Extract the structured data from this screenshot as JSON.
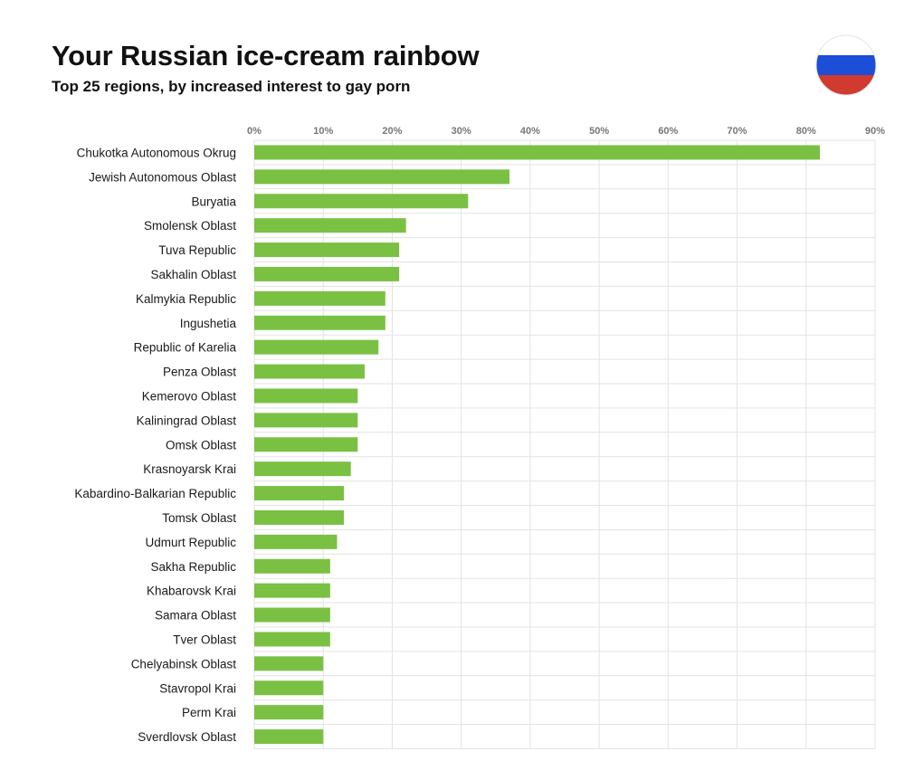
{
  "colors": {
    "bar": "#7ac143",
    "grid": "#e3e3e3",
    "flag_white": "#ffffff",
    "flag_blue": "#1d4ed8",
    "flag_red": "#d03a2f"
  },
  "flag": {
    "icon": "russia-flag-icon"
  },
  "chart_data": {
    "type": "bar",
    "orientation": "horizontal",
    "title": "Your Russian ice-cream rainbow",
    "subtitle": "Top 25 regions, by increased interest to gay porn",
    "xlabel": "",
    "ylabel": "",
    "xlim": [
      0,
      90
    ],
    "x_ticks": [
      "0%",
      "10%",
      "20%",
      "30%",
      "40%",
      "50%",
      "60%",
      "70%",
      "80%",
      "90%"
    ],
    "x_tick_values": [
      0,
      10,
      20,
      30,
      40,
      50,
      60,
      70,
      80,
      90
    ],
    "grid": true,
    "categories": [
      "Chukotka Autonomous Okrug",
      "Jewish Autonomous Oblast",
      "Buryatia",
      "Smolensk Oblast",
      "Tuva Republic",
      "Sakhalin Oblast",
      "Kalmykia Republic",
      "Ingushetia",
      "Republic of Karelia",
      "Penza Oblast",
      "Kemerovo Oblast",
      "Kaliningrad Oblast",
      "Omsk Oblast",
      "Krasnoyarsk Krai",
      "Kabardino-Balkarian Republic",
      "Tomsk Oblast",
      "Udmurt Republic",
      "Sakha Republic",
      "Khabarovsk Krai",
      "Samara Oblast",
      "Tver Oblast",
      "Chelyabinsk Oblast",
      "Stavropol Krai",
      "Perm Krai",
      "Sverdlovsk Oblast"
    ],
    "values": [
      82,
      37,
      31,
      22,
      21,
      21,
      19,
      19,
      18,
      16,
      15,
      15,
      15,
      14,
      13,
      13,
      12,
      11,
      11,
      11,
      11,
      10,
      10,
      10,
      10
    ]
  }
}
